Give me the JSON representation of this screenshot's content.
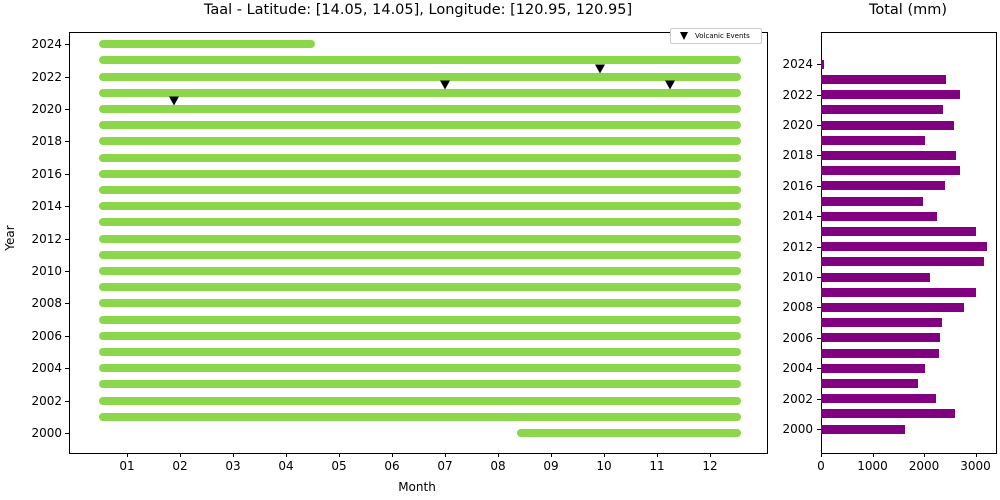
{
  "chart_data": [
    {
      "type": "bar",
      "subtype": "timeline",
      "title": "Taal - Latitude: [14.05, 14.05], Longitude: [120.95, 120.95]",
      "xlabel": "Month",
      "ylabel": "Year",
      "x_tick_labels": [
        "01",
        "02",
        "03",
        "04",
        "05",
        "06",
        "07",
        "08",
        "09",
        "10",
        "11",
        "12"
      ],
      "y_tick_labels": [
        "2000",
        "2002",
        "2004",
        "2006",
        "2008",
        "2010",
        "2012",
        "2014",
        "2016",
        "2018",
        "2020",
        "2022",
        "2024"
      ],
      "bar_color": "#8bd64a",
      "data_coverage": [
        {
          "year": 2000,
          "start_month": 8.35,
          "end_month": 12.58
        },
        {
          "year": 2001,
          "start_month": 0.47,
          "end_month": 12.58
        },
        {
          "year": 2002,
          "start_month": 0.47,
          "end_month": 12.58
        },
        {
          "year": 2003,
          "start_month": 0.47,
          "end_month": 12.58
        },
        {
          "year": 2004,
          "start_month": 0.47,
          "end_month": 12.58
        },
        {
          "year": 2005,
          "start_month": 0.47,
          "end_month": 12.58
        },
        {
          "year": 2006,
          "start_month": 0.47,
          "end_month": 12.58
        },
        {
          "year": 2007,
          "start_month": 0.47,
          "end_month": 12.58
        },
        {
          "year": 2008,
          "start_month": 0.47,
          "end_month": 12.58
        },
        {
          "year": 2009,
          "start_month": 0.47,
          "end_month": 12.58
        },
        {
          "year": 2010,
          "start_month": 0.47,
          "end_month": 12.58
        },
        {
          "year": 2011,
          "start_month": 0.47,
          "end_month": 12.58
        },
        {
          "year": 2012,
          "start_month": 0.47,
          "end_month": 12.58
        },
        {
          "year": 2013,
          "start_month": 0.47,
          "end_month": 12.58
        },
        {
          "year": 2014,
          "start_month": 0.47,
          "end_month": 12.58
        },
        {
          "year": 2015,
          "start_month": 0.47,
          "end_month": 12.58
        },
        {
          "year": 2016,
          "start_month": 0.47,
          "end_month": 12.58
        },
        {
          "year": 2017,
          "start_month": 0.47,
          "end_month": 12.58
        },
        {
          "year": 2018,
          "start_month": 0.47,
          "end_month": 12.58
        },
        {
          "year": 2019,
          "start_month": 0.47,
          "end_month": 12.58
        },
        {
          "year": 2020,
          "start_month": 0.47,
          "end_month": 12.58
        },
        {
          "year": 2021,
          "start_month": 0.47,
          "end_month": 12.58
        },
        {
          "year": 2022,
          "start_month": 0.47,
          "end_month": 12.58
        },
        {
          "year": 2023,
          "start_month": 0.47,
          "end_month": 12.58
        },
        {
          "year": 2024,
          "start_month": 0.47,
          "end_month": 4.55
        }
      ],
      "volcanic_events": [
        {
          "month": 1.89,
          "year": 2020.5
        },
        {
          "month": 7.0,
          "year": 2021.5
        },
        {
          "month": 9.92,
          "year": 2022.5
        },
        {
          "month": 11.25,
          "year": 2021.5
        }
      ],
      "legend": {
        "entries": [
          "Volcanic Events"
        ],
        "position": "upper right"
      },
      "xlim": [
        -0.1,
        13.1
      ],
      "ylim": [
        1998.8,
        2025.0
      ],
      "grid": false
    },
    {
      "type": "bar",
      "orientation": "horizontal",
      "title": "Total (mm)",
      "xlabel": "",
      "ylabel": "",
      "x_tick_labels": [
        "0",
        "1000",
        "2000",
        "3000"
      ],
      "y_tick_labels": [
        "2000",
        "2002",
        "2004",
        "2006",
        "2008",
        "2010",
        "2012",
        "2014",
        "2016",
        "2018",
        "2020",
        "2022",
        "2024"
      ],
      "color": "#800080",
      "categories": [
        2000,
        2001,
        2002,
        2003,
        2004,
        2005,
        2006,
        2007,
        2008,
        2009,
        2010,
        2011,
        2012,
        2013,
        2014,
        2015,
        2016,
        2017,
        2018,
        2019,
        2020,
        2021,
        2022,
        2023,
        2024
      ],
      "values": [
        1640,
        2610,
        2240,
        1890,
        2010,
        2300,
        2320,
        2340,
        2780,
        3000,
        2120,
        3170,
        3230,
        3000,
        2260,
        1990,
        2400,
        2690,
        2630,
        2010,
        2590,
        2360,
        2690,
        2420,
        50
      ],
      "xlim": [
        0,
        3400
      ],
      "grid": false
    }
  ]
}
